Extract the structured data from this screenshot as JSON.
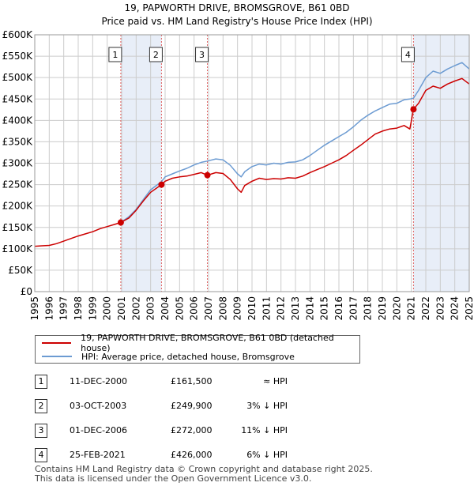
{
  "chart_data": {
    "type": "line",
    "title": "19, PAPWORTH DRIVE, BROMSGROVE, B61 0BD",
    "subtitle": "Price paid vs. HM Land Registry's House Price Index (HPI)",
    "xlim": [
      1995,
      2025
    ],
    "ylim": [
      0,
      600000
    ],
    "x_ticks": [
      "1995",
      "1996",
      "1997",
      "1998",
      "1999",
      "2000",
      "2001",
      "2002",
      "2003",
      "2004",
      "2005",
      "2006",
      "2007",
      "2008",
      "2009",
      "2010",
      "2011",
      "2012",
      "2013",
      "2014",
      "2015",
      "2016",
      "2017",
      "2018",
      "2019",
      "2020",
      "2021",
      "2022",
      "2023",
      "2024",
      "2025"
    ],
    "y_ticks": [
      {
        "value": 0,
        "label": "£0"
      },
      {
        "value": 50000,
        "label": "£50K"
      },
      {
        "value": 100000,
        "label": "£100K"
      },
      {
        "value": 150000,
        "label": "£150K"
      },
      {
        "value": 200000,
        "label": "£200K"
      },
      {
        "value": 250000,
        "label": "£250K"
      },
      {
        "value": 300000,
        "label": "£300K"
      },
      {
        "value": 350000,
        "label": "£350K"
      },
      {
        "value": 400000,
        "label": "£400K"
      },
      {
        "value": 450000,
        "label": "£450K"
      },
      {
        "value": 500000,
        "label": "£500K"
      },
      {
        "value": 550000,
        "label": "£550K"
      },
      {
        "value": 600000,
        "label": "£600K"
      }
    ],
    "grid": true,
    "shaded_periods": [
      [
        2000.94,
        2003.75
      ],
      [
        2021.15,
        2025.0
      ]
    ],
    "series": [
      {
        "name": "19, PAPWORTH DRIVE, BROMSGROVE, B61 0BD (detached house)",
        "color": "#cc0000",
        "x": [
          1995.0,
          1995.5,
          1996.0,
          1996.5,
          1997.0,
          1997.5,
          1998.0,
          1998.5,
          1999.0,
          1999.5,
          2000.0,
          2000.5,
          2000.94,
          2001.5,
          2002.0,
          2002.5,
          2003.0,
          2003.75,
          2004.0,
          2004.5,
          2005.0,
          2005.5,
          2006.0,
          2006.5,
          2006.92,
          2007.5,
          2008.0,
          2008.5,
          2009.0,
          2009.25,
          2009.5,
          2010.0,
          2010.5,
          2011.0,
          2011.5,
          2012.0,
          2012.5,
          2013.0,
          2013.5,
          2014.0,
          2014.5,
          2015.0,
          2015.5,
          2016.0,
          2016.5,
          2017.0,
          2017.5,
          2018.0,
          2018.5,
          2019.0,
          2019.5,
          2020.0,
          2020.5,
          2020.9,
          2021.15,
          2021.5,
          2022.0,
          2022.5,
          2023.0,
          2023.5,
          2024.0,
          2024.5,
          2025.0
        ],
        "y": [
          106000,
          107000,
          108000,
          112000,
          118000,
          124000,
          130000,
          135000,
          140000,
          147000,
          152000,
          157000,
          161500,
          172000,
          190000,
          212000,
          232000,
          249900,
          258000,
          265000,
          268000,
          270000,
          274000,
          278000,
          272000,
          278000,
          276000,
          262000,
          240000,
          232000,
          248000,
          258000,
          265000,
          262000,
          264000,
          263000,
          266000,
          265000,
          270000,
          278000,
          285000,
          292000,
          300000,
          308000,
          318000,
          330000,
          342000,
          355000,
          368000,
          375000,
          380000,
          382000,
          388000,
          380000,
          426000,
          440000,
          470000,
          480000,
          475000,
          485000,
          492000,
          498000,
          485000
        ]
      },
      {
        "name": "HPI: Average price, detached house, Bromsgrove",
        "color": "#6c9bd2",
        "x": [
          2000.94,
          2001.5,
          2002.0,
          2002.5,
          2003.0,
          2003.75,
          2004.0,
          2004.5,
          2005.0,
          2005.5,
          2006.0,
          2006.5,
          2006.92,
          2007.5,
          2008.0,
          2008.5,
          2009.0,
          2009.25,
          2009.5,
          2010.0,
          2010.5,
          2011.0,
          2011.5,
          2012.0,
          2012.5,
          2013.0,
          2013.5,
          2014.0,
          2014.5,
          2015.0,
          2015.5,
          2016.0,
          2016.5,
          2017.0,
          2017.5,
          2018.0,
          2018.5,
          2019.0,
          2019.5,
          2020.0,
          2020.5,
          2020.9,
          2021.15,
          2021.5,
          2022.0,
          2022.5,
          2023.0,
          2023.5,
          2024.0,
          2024.5,
          2025.0
        ],
        "y": [
          161500,
          175000,
          192000,
          215000,
          238000,
          257000,
          268000,
          275000,
          282000,
          288000,
          296000,
          302000,
          305000,
          310000,
          308000,
          295000,
          275000,
          268000,
          280000,
          292000,
          298000,
          296000,
          300000,
          298000,
          302000,
          303000,
          308000,
          318000,
          330000,
          342000,
          352000,
          362000,
          372000,
          385000,
          400000,
          412000,
          422000,
          430000,
          438000,
          440000,
          448000,
          450000,
          452000,
          470000,
          500000,
          515000,
          510000,
          520000,
          528000,
          535000,
          520000
        ]
      }
    ],
    "sales": [
      {
        "n": "1",
        "x": 2000.94,
        "y": 161500,
        "date": "11-DEC-2000",
        "price": "£161,500",
        "hpi": "≈ HPI"
      },
      {
        "n": "2",
        "x": 2003.75,
        "y": 249900,
        "date": "03-OCT-2003",
        "price": "£249,900",
        "hpi": "3% ↓ HPI"
      },
      {
        "n": "3",
        "x": 2006.92,
        "y": 272000,
        "date": "01-DEC-2006",
        "price": "£272,000",
        "hpi": "11% ↓ HPI"
      },
      {
        "n": "4",
        "x": 2021.15,
        "y": 426000,
        "date": "25-FEB-2021",
        "price": "£426,000",
        "hpi": "6% ↓ HPI"
      }
    ],
    "colors": {
      "shade": "#e8eef8",
      "grid": "#cccccc",
      "vline": "#e06060"
    }
  },
  "legend": {
    "property": "19, PAPWORTH DRIVE, BROMSGROVE, B61 0BD (detached house)",
    "hpi": "HPI: Average price, detached house, Bromsgrove"
  },
  "footer": {
    "line1": "Contains HM Land Registry data © Crown copyright and database right 2025.",
    "line2": "This data is licensed under the Open Government Licence v3.0."
  }
}
